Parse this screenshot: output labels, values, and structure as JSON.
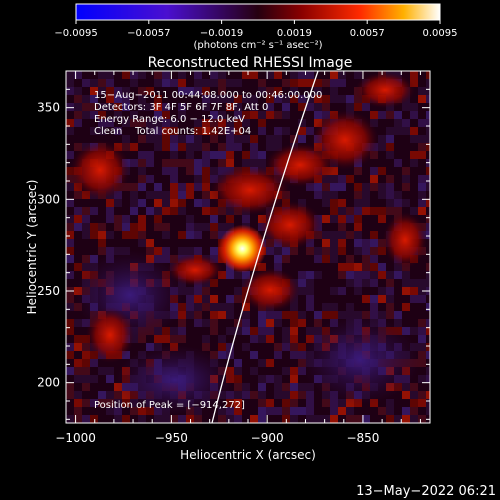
{
  "colorbar": {
    "min": -0.0095,
    "max": 0.0095,
    "tick_labels": [
      "−0.0095",
      "−0.0057",
      "−0.0019",
      "0.0019",
      "0.0057",
      "0.0095"
    ],
    "units_label": "(photons cm⁻² s⁻¹ asec⁻²)"
  },
  "title": "Reconstructed RHESSI Image",
  "annotations": {
    "line1": "15−Aug−2011 00:44:08.000 to 00:46:00.000",
    "line2": "Detectors: 3F 4F 5F 6F 7F 8F, Att 0",
    "line3": "Energy Range: 6.0 − 12.0 keV",
    "line4": "Clean    Total counts: 1.42E+04",
    "peak": "Position of Peak = [−914,272]"
  },
  "axes": {
    "xlabel": "Heliocentric X (arcsec)",
    "ylabel": "Heliocentric Y (arcsec)",
    "xlim": [
      -1005,
      -815
    ],
    "ylim": [
      178,
      370
    ],
    "x_ticks": [
      -1000,
      -950,
      -900,
      -850
    ],
    "x_tick_labels": [
      "−1000",
      "−950",
      "−900",
      "−850"
    ],
    "y_ticks": [
      200,
      250,
      300,
      350
    ],
    "y_tick_labels": [
      "200",
      "250",
      "300",
      "350"
    ]
  },
  "peak_position": [
    -914,
    272
  ],
  "footer_timestamp": "13−May−2022 06:21"
}
